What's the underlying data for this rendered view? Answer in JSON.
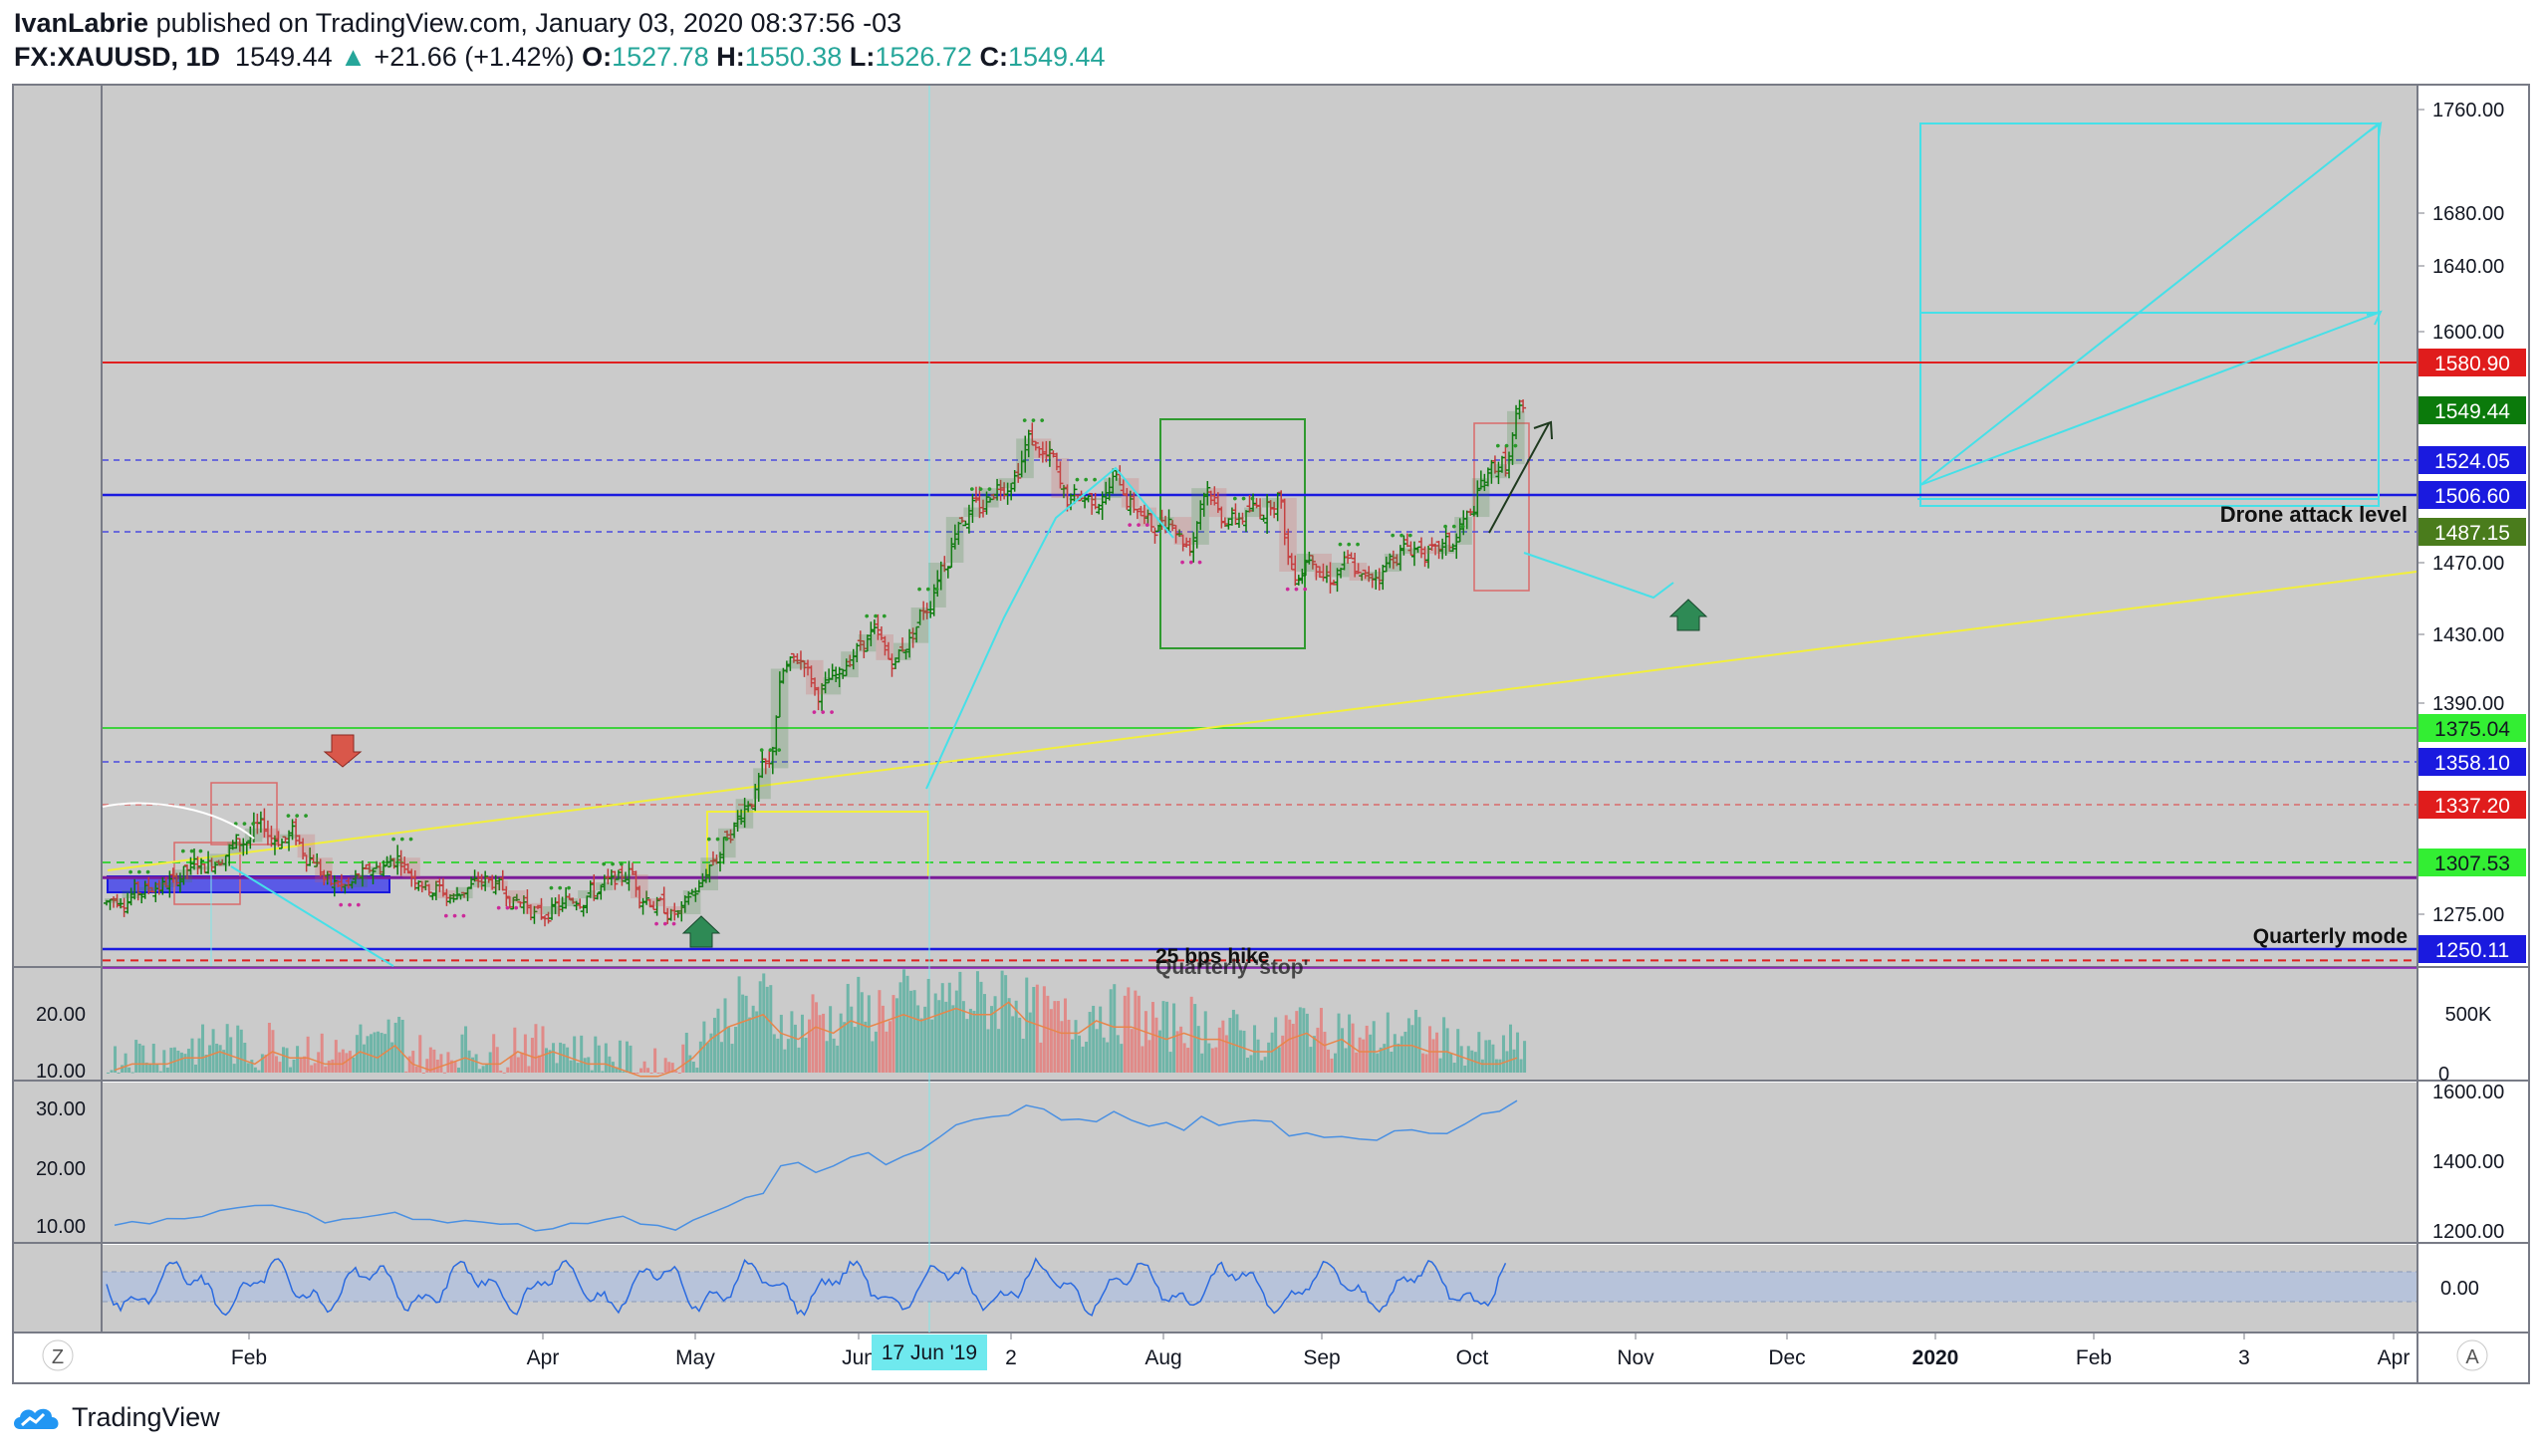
{
  "header": {
    "author": "IvanLabrie",
    "published_text": "published on TradingView.com, January 03, 2020 08:37:56 -03",
    "symbol": "FX:XAUUSD, 1D",
    "last": "1549.44",
    "change": "+21.66 (+1.42%)",
    "o_label": "O:",
    "o_value": "1527.78",
    "h_label": "H:",
    "h_value": "1550.38",
    "l_label": "L:",
    "l_value": "1526.72",
    "c_label": "C:",
    "c_value": "1549.44"
  },
  "footer": {
    "brand": "TradingView",
    "logo_icon": "tradingview-cloud-icon"
  },
  "buttons": {
    "auto_scale": "A",
    "zoom": "Z"
  },
  "colors": {
    "pane_bg": "#cbcbcb",
    "up": "#0b7a0b",
    "down": "#c23b3b",
    "cyan": "#46e0e8",
    "yellow": "#f2ef3c",
    "red_line": "#e02020",
    "green_line": "#3fd13f",
    "blue_line": "#1a1adf"
  },
  "chart_data": {
    "type": "candlestick",
    "title": "FX:XAUUSD, 1D",
    "x_range": [
      "2019-01-02",
      "2020-04-01"
    ],
    "ylim": [
      1225,
      1785
    ],
    "date_cursor": "17 Jun '19",
    "x_ticks": [
      "Feb",
      "Apr",
      "May",
      "Jun",
      "2",
      "Aug",
      "Sep",
      "Oct",
      "Nov",
      "Dec",
      "2020",
      "Feb",
      "3",
      "Apr"
    ],
    "y_ticks": [
      "1760.00",
      "1680.00",
      "1640.00",
      "1600.00",
      "1470.00",
      "1430.00",
      "1390.00",
      "1275.00"
    ],
    "price_labels": [
      {
        "value": 1580.9,
        "label": "1580.90",
        "bg": "#e01c1c"
      },
      {
        "value": 1549.44,
        "label": "1549.44",
        "bg": "#0b7a0b"
      },
      {
        "value": 1524.05,
        "label": "1524.05",
        "bg": "#1a1adf"
      },
      {
        "value": 1506.6,
        "label": "1506.60",
        "bg": "#1a1adf"
      },
      {
        "value": 1487.15,
        "label": "1487.15",
        "bg": "#4a7c1c"
      },
      {
        "value": 1375.04,
        "label": "1375.04",
        "bg": "#33ee33"
      },
      {
        "value": 1358.1,
        "label": "1358.10",
        "bg": "#1a1adf"
      },
      {
        "value": 1337.2,
        "label": "1337.20",
        "bg": "#e01c1c"
      },
      {
        "value": 1307.53,
        "label": "1307.53",
        "bg": "#33ee33"
      },
      {
        "value": 1250.11,
        "label": "1250.11",
        "bg": "#1a1adf"
      }
    ],
    "annotations": [
      "Drone attack level",
      "Quarterly mode",
      "25 bps hike",
      "Quarterly 'stop'"
    ],
    "weekly_closes": [
      1285,
      1290,
      1292,
      1295,
      1303,
      1305,
      1312,
      1318,
      1325,
      1320,
      1322,
      1310,
      1295,
      1292,
      1300,
      1305,
      1310,
      1298,
      1290,
      1285,
      1292,
      1296,
      1290,
      1282,
      1275,
      1280,
      1285,
      1290,
      1295,
      1300,
      1285,
      1280,
      1275,
      1290,
      1310,
      1325,
      1340,
      1355,
      1410,
      1415,
      1395,
      1405,
      1420,
      1430,
      1415,
      1425,
      1445,
      1470,
      1495,
      1500,
      1510,
      1515,
      1535,
      1525,
      1505,
      1505,
      1505,
      1515,
      1500,
      1490,
      1495,
      1480,
      1510,
      1495,
      1495,
      1500,
      1505,
      1465,
      1475,
      1462,
      1470,
      1460,
      1465,
      1475,
      1478,
      1475,
      1480,
      1495,
      1515,
      1522,
      1549
    ],
    "volume": {
      "left_ticks": [
        "20.00",
        "10.00"
      ],
      "right_ticks": [
        "500K",
        "0"
      ],
      "weekly_values": [
        11,
        12,
        12,
        12,
        13,
        13,
        14,
        13,
        12,
        14,
        13,
        13,
        12,
        12,
        14,
        13,
        15,
        12,
        11,
        12,
        13,
        12,
        12,
        14,
        13,
        14,
        13,
        12,
        12,
        11,
        10,
        10,
        11,
        13,
        16,
        18,
        19,
        20,
        17,
        16,
        18,
        17,
        19,
        18,
        19,
        20,
        19,
        20,
        21,
        20,
        20,
        22,
        19,
        18,
        17,
        17,
        19,
        18,
        18,
        17,
        16,
        17,
        16,
        16,
        15,
        14,
        14,
        16,
        17,
        15,
        16,
        14,
        14,
        15,
        15,
        14,
        14,
        13,
        12,
        12,
        13
      ]
    },
    "ratio_pane": {
      "left_ticks": [
        "30.00",
        "20.00",
        "10.00"
      ],
      "right_ticks": [
        "1600.00",
        "1400.00",
        "1200.00"
      ]
    },
    "oscillator_pane": {
      "right_ticks": [
        "0.00"
      ]
    }
  }
}
